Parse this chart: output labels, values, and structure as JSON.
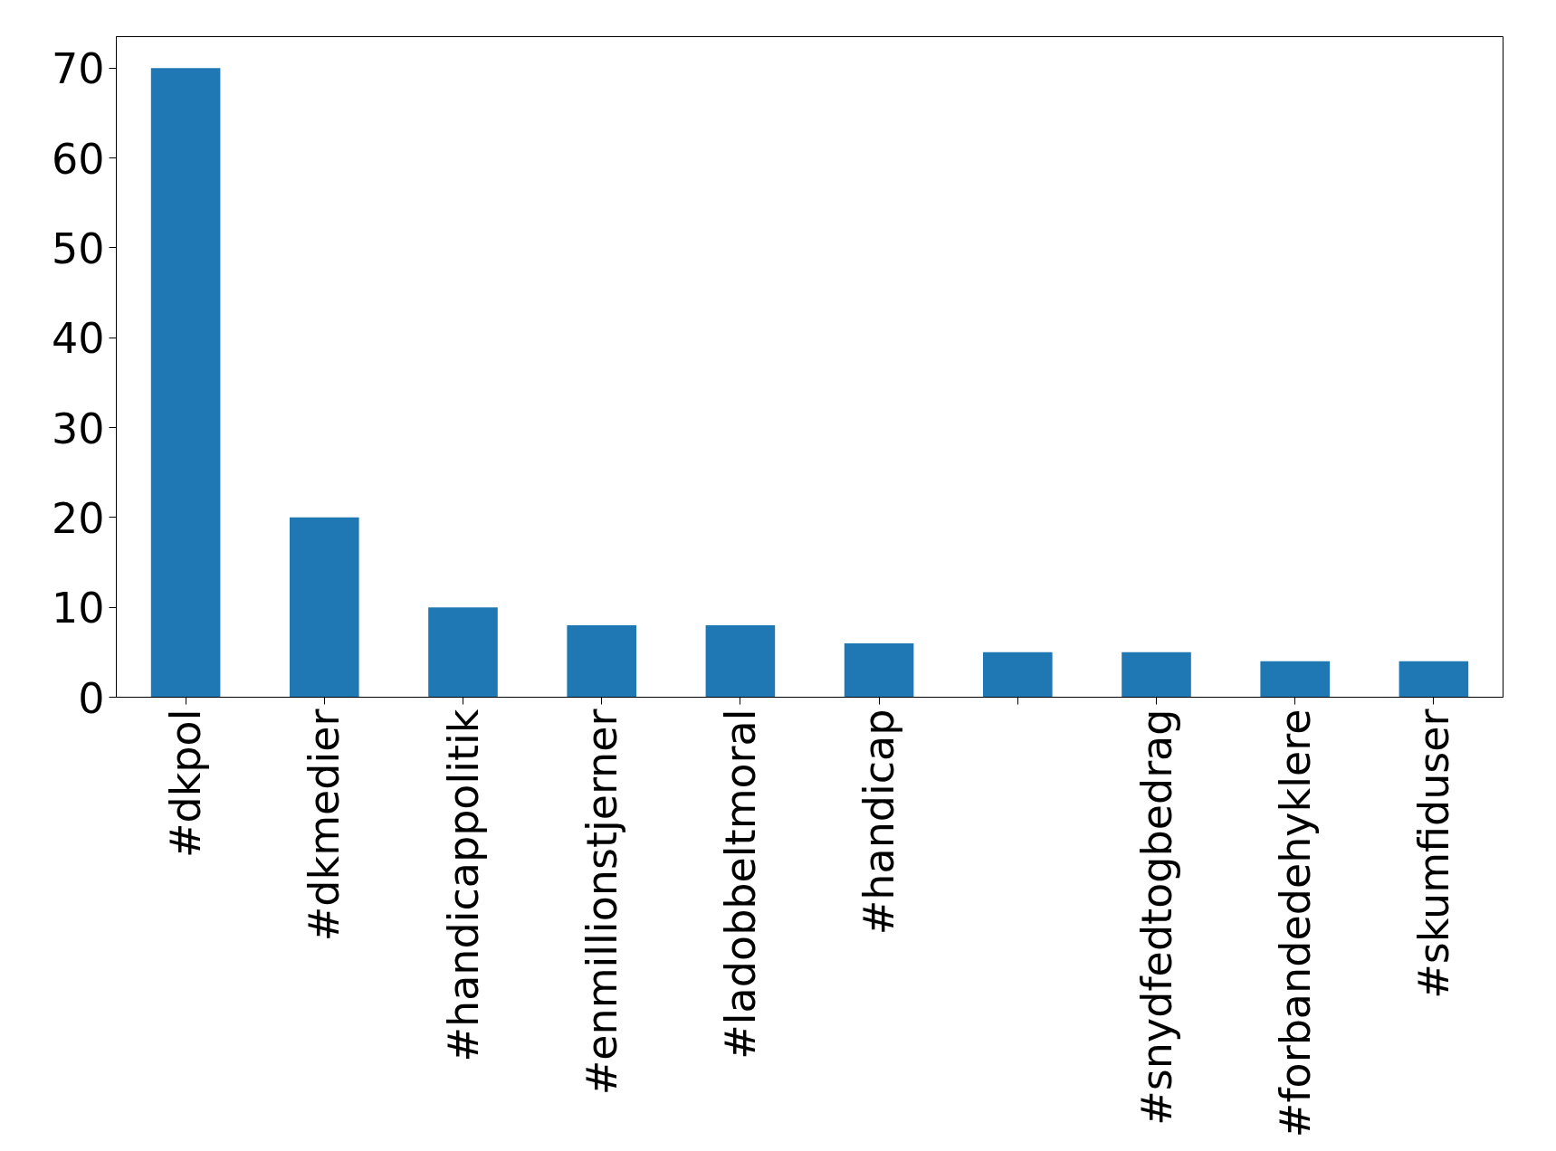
{
  "chart_data": {
    "type": "bar",
    "categories": [
      "#dkpol",
      "#dkmedier",
      "#handicappolitik",
      "#enmillionstjerner",
      "#ladobbeltmoral",
      "#handicap",
      null,
      "#snydfedtogbedrag",
      "#forbandedehyklere",
      "#skumfiduser"
    ],
    "values": [
      70,
      20,
      10,
      8,
      8,
      6,
      5,
      5,
      4,
      4
    ],
    "color": "#1f77b4",
    "ylim": [
      0,
      73.5
    ],
    "yticks": [
      0,
      10,
      20,
      30,
      40,
      50,
      60,
      70
    ],
    "grid": false
  }
}
